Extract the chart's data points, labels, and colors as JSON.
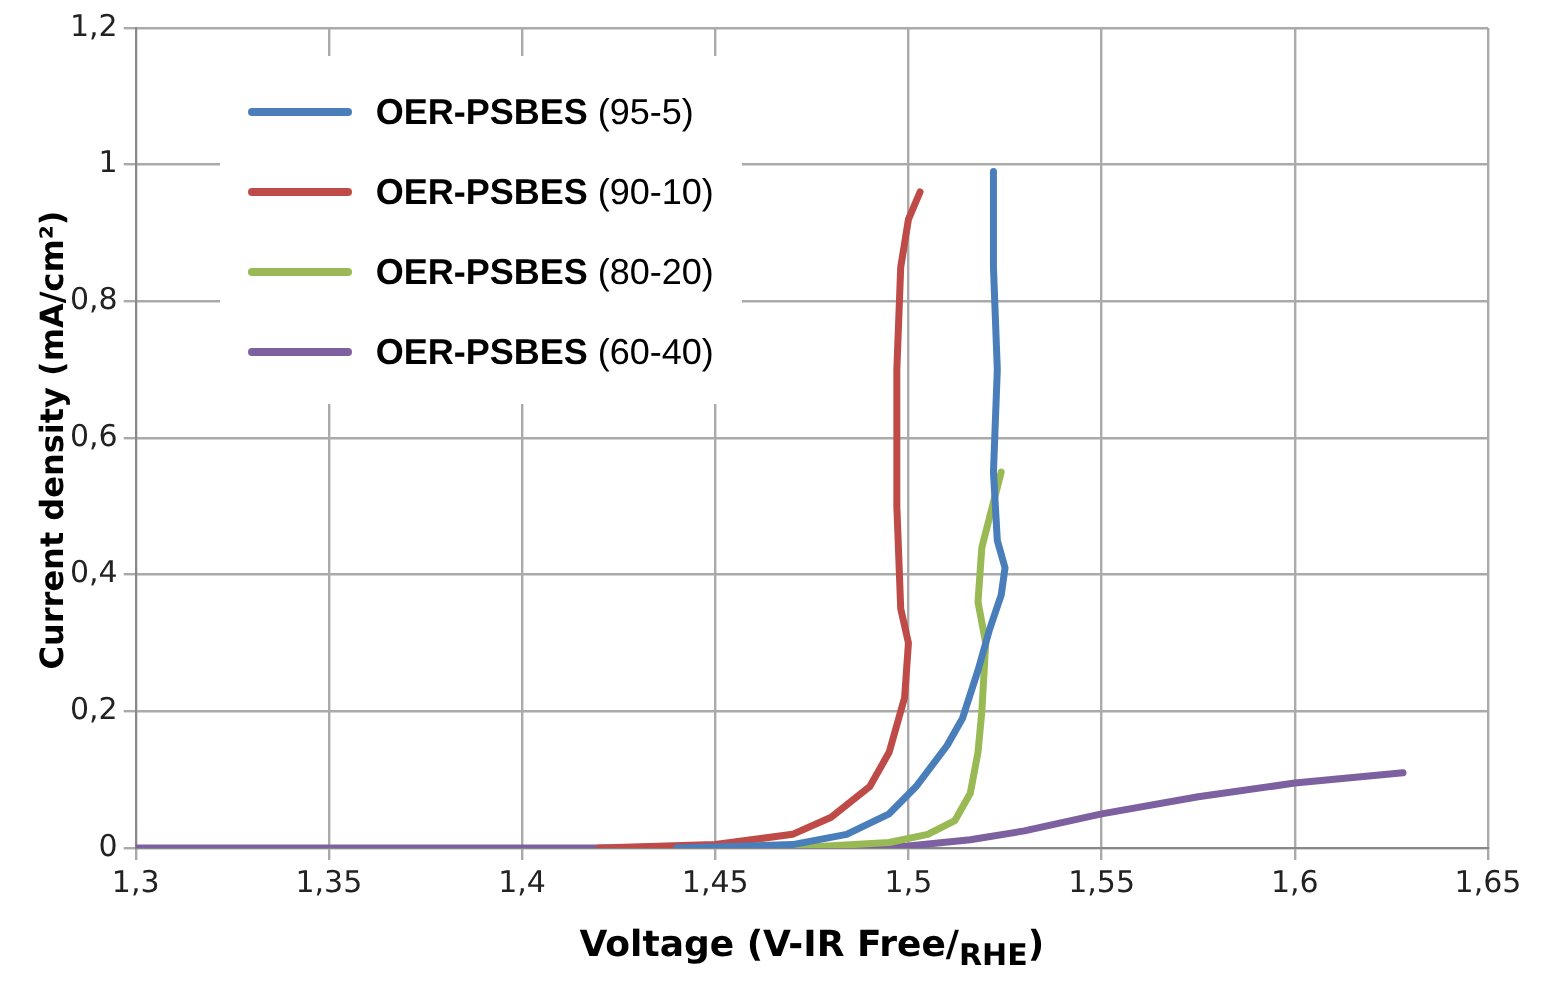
{
  "chart_data": {
    "type": "line",
    "xlabel": "Voltage (V-IR Free/$_{RHE}$)",
    "ylabel": "Current density (mA/cm²)",
    "xlim": [
      1.3,
      1.65
    ],
    "xticks": [
      {
        "value": 1.3,
        "label": "1,3"
      },
      {
        "value": 1.35,
        "label": "1,35"
      },
      {
        "value": 1.4,
        "label": "1,4"
      },
      {
        "value": 1.45,
        "label": "1,45"
      },
      {
        "value": 1.5,
        "label": "1,5"
      },
      {
        "value": 1.55,
        "label": "1,55"
      },
      {
        "value": 1.6,
        "label": "1,6"
      },
      {
        "value": 1.65,
        "label": "1,65"
      }
    ],
    "ylim": [
      0,
      1.2
    ],
    "yticks": [
      0,
      {
        "value": 0.2,
        "label": "0,2"
      },
      {
        "value": 0.4,
        "label": "0,4"
      },
      {
        "value": 0.6,
        "label": "0,6"
      },
      {
        "value": 0.8,
        "label": "0,8"
      },
      1,
      {
        "value": 1.2,
        "label": "1,2"
      }
    ],
    "grid": true,
    "legend": "top left",
    "marker": "none",
    "series": [
      {
        "name": "OER-PSBES (95-5)",
        "color": "#4a7ebb",
        "x": [
          1.44,
          1.47,
          1.484,
          1.495,
          1.502,
          1.51,
          1.514,
          1.518,
          1.521,
          1.524,
          1.525,
          1.523,
          1.522,
          1.523,
          1.522,
          1.522
        ],
        "values": [
          0,
          0.005,
          0.02,
          0.05,
          0.09,
          0.15,
          0.19,
          0.26,
          0.32,
          0.37,
          0.41,
          0.45,
          0.55,
          0.7,
          0.85,
          0.99
        ]
      },
      {
        "name": "OER-PSBES (90-10)",
        "color": "#be4b48",
        "x": [
          1.42,
          1.45,
          1.47,
          1.48,
          1.49,
          1.495,
          1.499,
          1.5,
          1.498,
          1.497,
          1.497,
          1.498,
          1.5,
          1.503
        ],
        "values": [
          0,
          0.005,
          0.02,
          0.045,
          0.09,
          0.14,
          0.22,
          0.3,
          0.35,
          0.5,
          0.7,
          0.85,
          0.92,
          0.96
        ]
      },
      {
        "name": "OER-PSBES (80-20)",
        "color": "#98b954",
        "x": [
          1.47,
          1.495,
          1.505,
          1.512,
          1.516,
          1.518,
          1.519,
          1.52,
          1.518,
          1.519,
          1.524
        ],
        "values": [
          0,
          0.008,
          0.02,
          0.04,
          0.08,
          0.14,
          0.2,
          0.3,
          0.36,
          0.44,
          0.55
        ]
      },
      {
        "name": "OER-PSBES (60-40)",
        "color": "#7d60a0",
        "x": [
          1.3,
          1.45,
          1.5,
          1.516,
          1.53,
          1.55,
          1.575,
          1.6,
          1.628
        ],
        "values": [
          0,
          0,
          0.003,
          0.012,
          0.025,
          0.05,
          0.075,
          0.095,
          0.11
        ]
      }
    ]
  }
}
